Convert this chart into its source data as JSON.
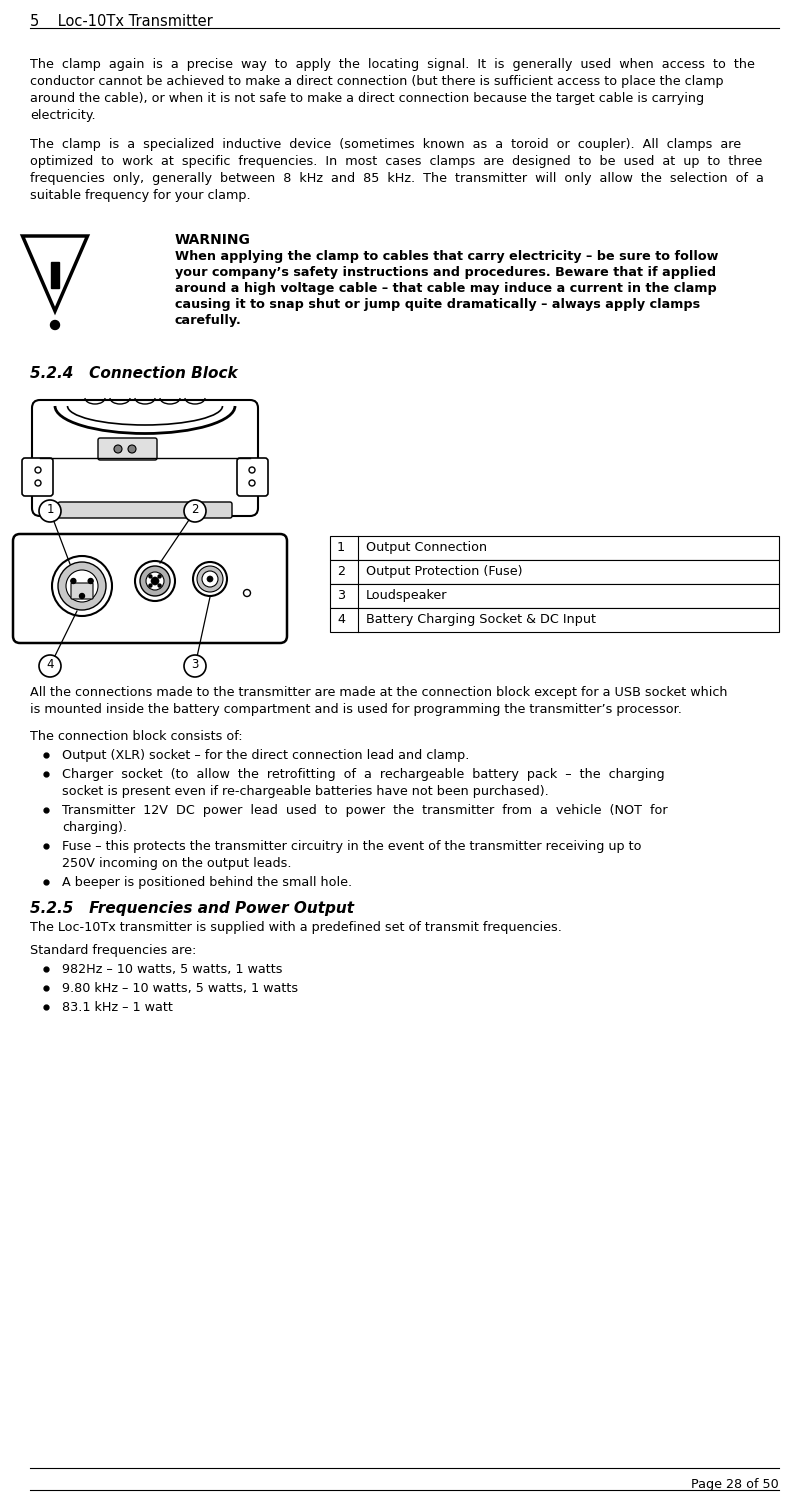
{
  "page_header": "5    Loc-10Tx Transmitter",
  "page_footer": "Page 28 of 50",
  "body1_lines": [
    "The  clamp  again  is  a  precise  way  to  apply  the  locating  signal.  It  is  generally  used  when  access  to  the",
    "conductor cannot be achieved to make a direct connection (but there is sufficient access to place the clamp",
    "around the cable), or when it is not safe to make a direct connection because the target cable is carrying",
    "electricity."
  ],
  "body2_lines": [
    "The  clamp  is  a  specialized  inductive  device  (sometimes  known  as  a  toroid  or  coupler).  All  clamps  are",
    "optimized  to  work  at  specific  frequencies.  In  most  cases  clamps  are  designed  to  be  used  at  up  to  three",
    "frequencies  only,  generally  between  8  kHz  and  85  kHz.  The  transmitter  will  only  allow  the  selection  of  a",
    "suitable frequency for your clamp."
  ],
  "warning_title": "WARNING",
  "warning_lines": [
    "When applying the clamp to cables that carry electricity – be sure to follow",
    "your company’s safety instructions and procedures. Beware that if applied",
    "around a high voltage cable – that cable may induce a current in the clamp",
    "causing it to snap shut or jump quite dramatically – always apply clamps",
    "carefully."
  ],
  "section_title_1": "5.2.4   Connection Block",
  "table_data": [
    [
      "1",
      "Output Connection"
    ],
    [
      "2",
      "Output Protection (Fuse)"
    ],
    [
      "3",
      "Loudspeaker"
    ],
    [
      "4",
      "Battery Charging Socket & DC Input"
    ]
  ],
  "conn_lines1": [
    "All the connections made to the transmitter are made at the connection block except for a USB socket which",
    "is mounted inside the battery compartment and is used for programming the transmitter’s processor."
  ],
  "conn_text2": "The connection block consists of:",
  "bullets1": [
    [
      "Output (XLR) socket – for the direct connection lead and clamp."
    ],
    [
      "Charger  socket  (to  allow  the  retrofitting  of  a  rechargeable  battery  pack  –  the  charging",
      "socket is present even if re-chargeable batteries have not been purchased)."
    ],
    [
      "Transmitter  12V  DC  power  lead  used  to  power  the  transmitter  from  a  vehicle  (NOT  for",
      "charging)."
    ],
    [
      "Fuse – this protects the transmitter circuitry in the event of the transmitter receiving up to",
      "250V incoming on the output leads."
    ],
    [
      "A beeper is positioned behind the small hole."
    ]
  ],
  "section_title_2": "5.2.5   Frequencies and Power Output",
  "freq_text1": "The Loc-10Tx transmitter is supplied with a predefined set of transmit frequencies.",
  "freq_text2": "Standard frequencies are:",
  "bullets2": [
    "982Hz – 10 watts, 5 watts, 1 watts",
    "9.80 kHz – 10 watts, 5 watts, 1 watts",
    "83.1 kHz – 1 watt"
  ]
}
